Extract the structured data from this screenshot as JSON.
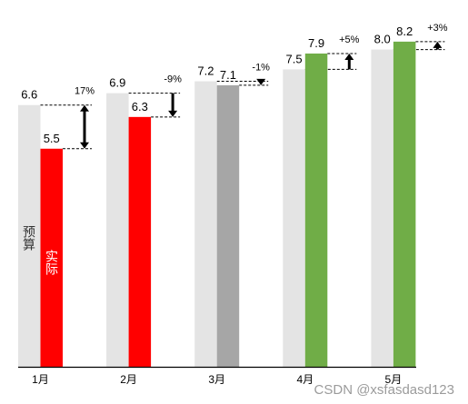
{
  "chart_data": {
    "type": "bar",
    "categories": [
      "1月",
      "2月",
      "3月",
      "4月",
      "5月"
    ],
    "series": [
      {
        "name": "预算",
        "values": [
          6.6,
          6.9,
          7.2,
          7.5,
          8.0
        ],
        "labels": [
          "6.6",
          "6.9",
          "7.2",
          "7.5",
          "8.0"
        ],
        "color": "#e4e4e4"
      },
      {
        "name": "实际",
        "values": [
          5.5,
          6.3,
          7.1,
          7.9,
          8.2
        ],
        "labels": [
          "5.5",
          "6.3",
          "7.1",
          "7.9",
          "8.2"
        ],
        "colors": [
          "#ff0000",
          "#ff0000",
          "#a6a6a6",
          "#70ad47",
          "#70ad47"
        ]
      }
    ],
    "variance_labels": [
      "17%",
      "-9%",
      "-1%",
      "+5%",
      "+3%"
    ],
    "variance_arrows": [
      "both",
      "down",
      "down",
      "up",
      "up"
    ],
    "ylim": [
      0,
      9.25
    ],
    "grid": false,
    "legend": "in-bar"
  },
  "watermark": "CSDN @xsfasdasd123"
}
